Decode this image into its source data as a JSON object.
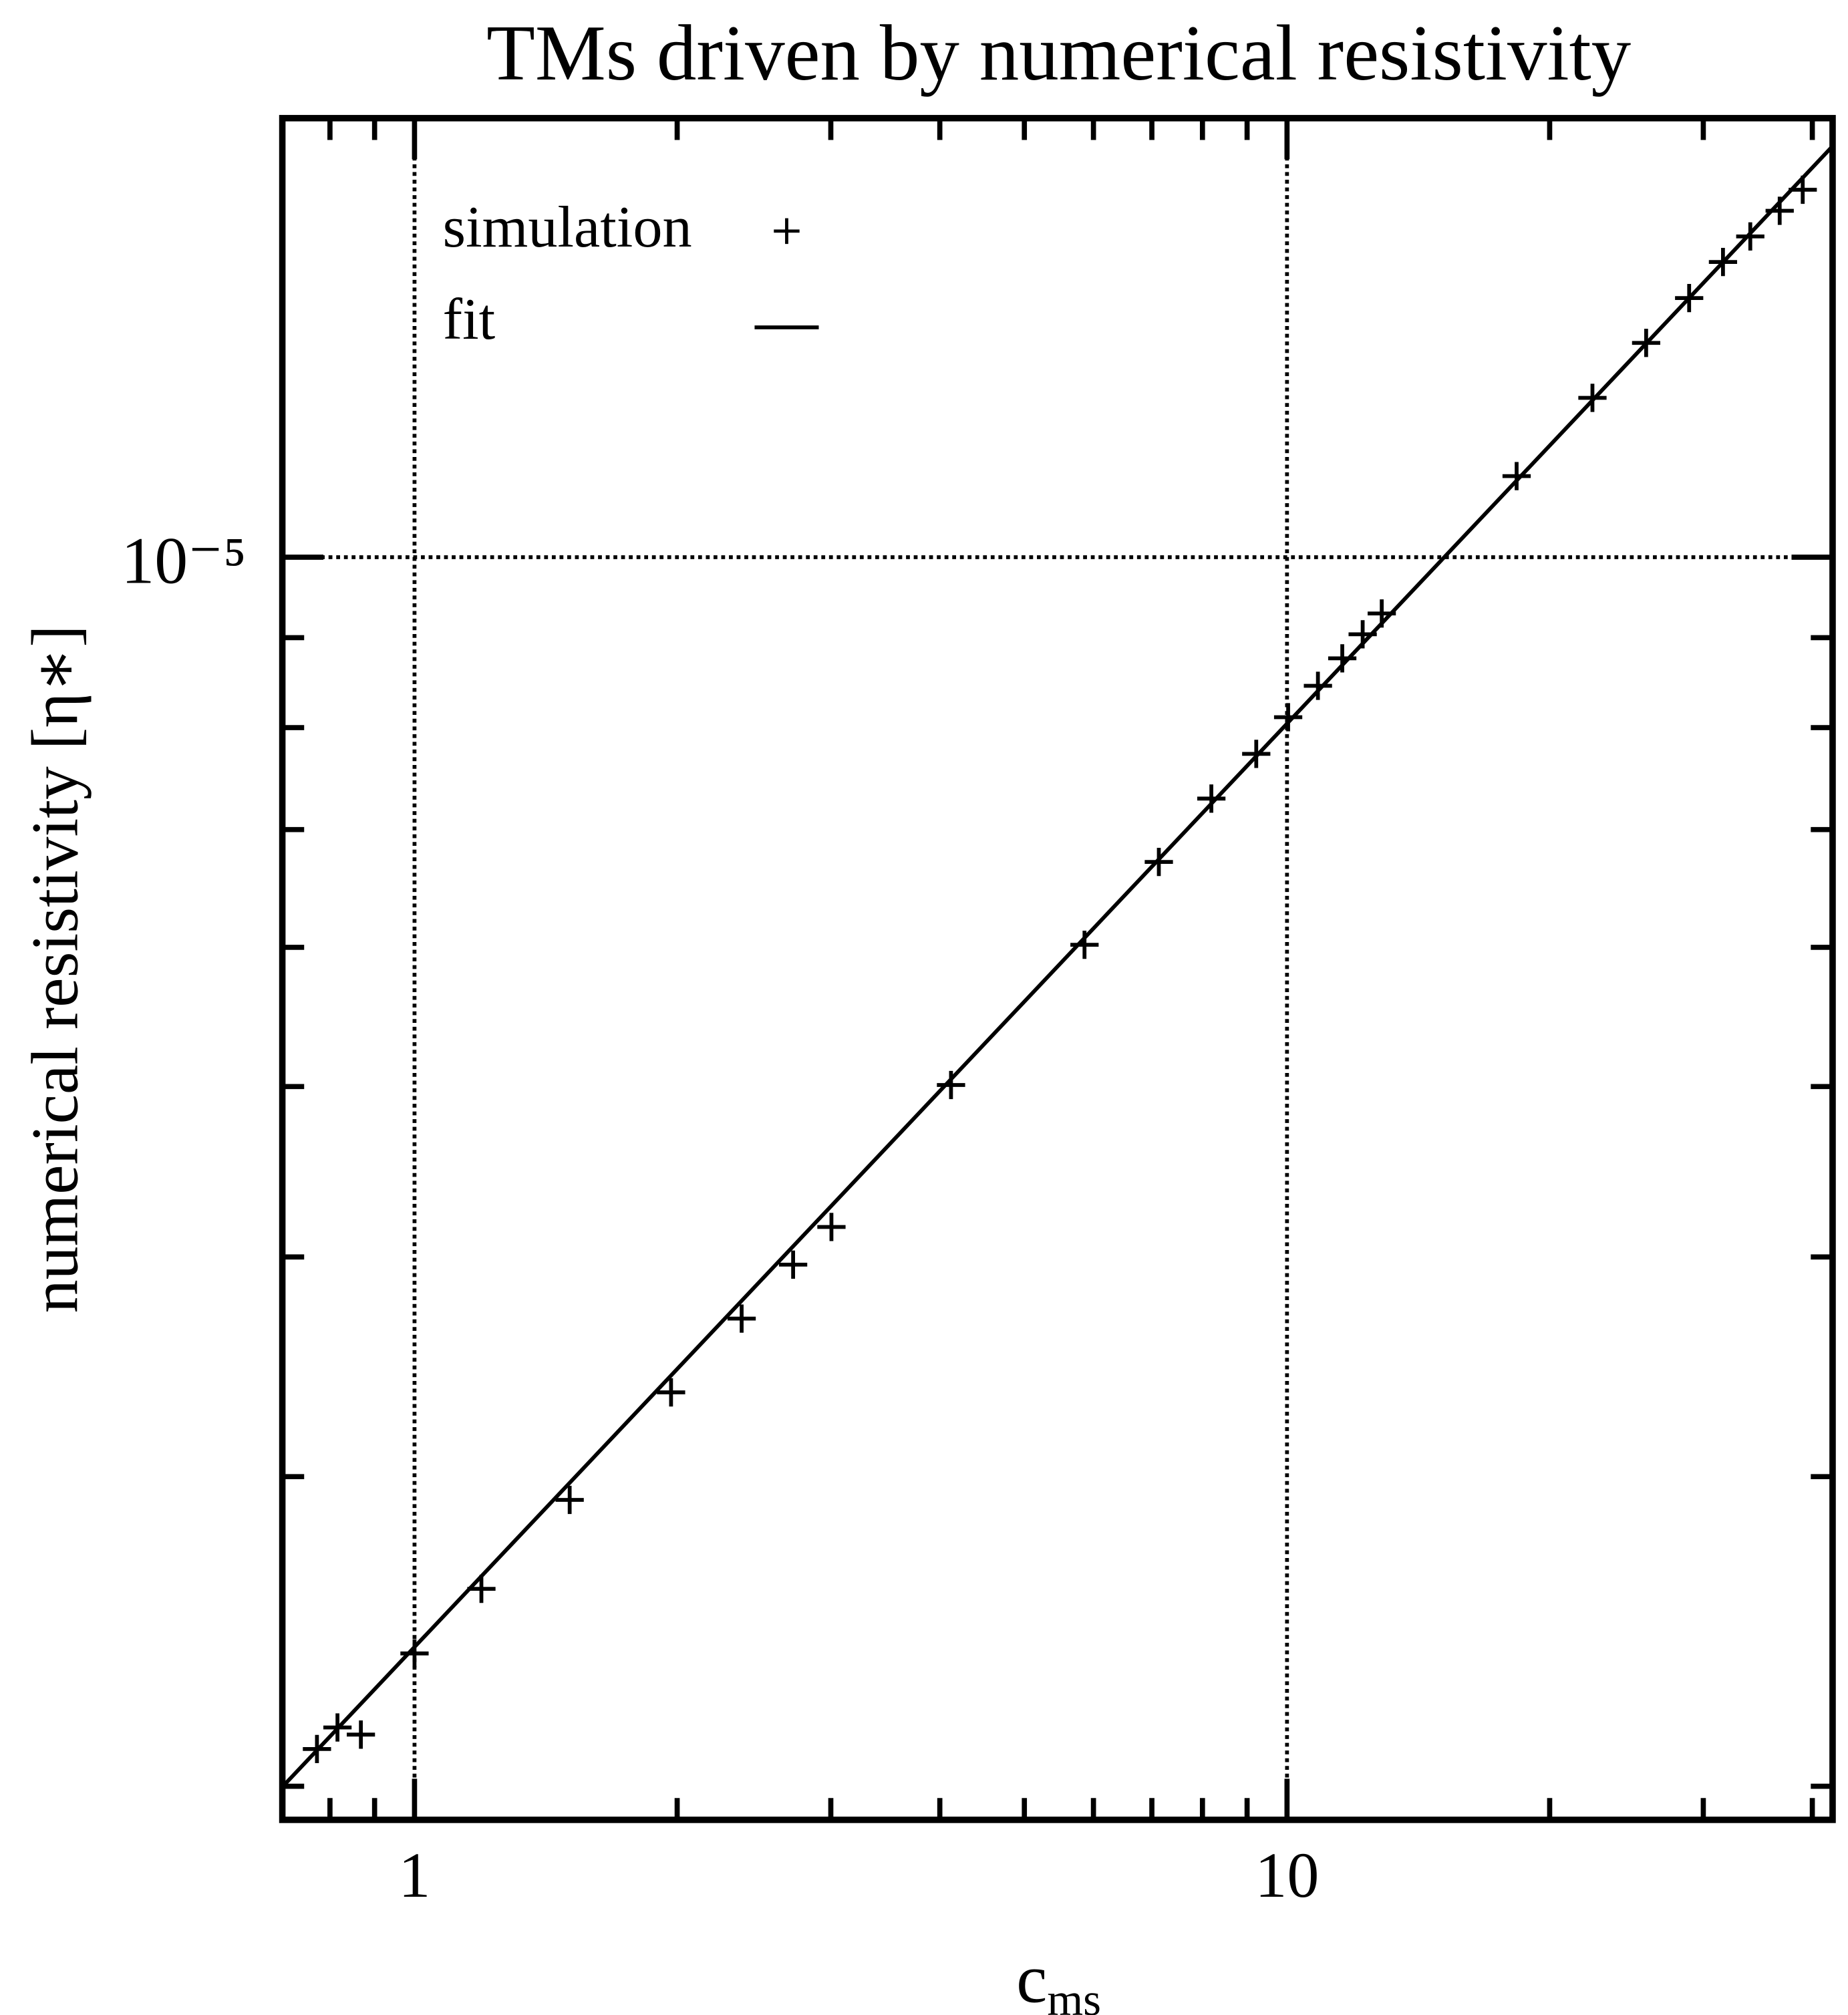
{
  "chart_data": {
    "type": "scatter",
    "title": "TMs driven by numerical resistivity",
    "x_label": "c",
    "x_label_sub": "ms",
    "y_label": "numerical resistivity  [η∗]",
    "log_x": true,
    "log_y": true,
    "grid": true,
    "legend": "upper left",
    "xlim": [
      0.7055,
      42.2
    ],
    "ylim": [
      1.914e-06,
      1.777e-05
    ],
    "xticks": [
      1,
      10
    ],
    "xminorticks": [
      0.8,
      0.9,
      2,
      3,
      4,
      5,
      6,
      7,
      8,
      9,
      20,
      30,
      40
    ],
    "yticks": [
      {
        "value": 1e-05,
        "label": "10⁻⁵"
      }
    ],
    "yminorticks": [
      2e-06,
      3e-06,
      4e-06,
      5e-06,
      6e-06,
      7e-06,
      8e-06,
      9e-06
    ],
    "series": [
      {
        "name": "simulation",
        "color": "#000000",
        "marker": "+",
        "x": [
          0.773,
          0.816,
          0.868,
          1.0,
          1.193,
          1.506,
          1.968,
          2.371,
          2.716,
          3.005,
          4.12,
          5.86,
          7.13,
          8.19,
          9.22,
          10.03,
          10.85,
          11.57,
          12.21,
          12.84,
          18.33,
          22.39,
          25.8,
          28.9,
          31.6,
          33.96,
          36.7,
          39.0
        ],
        "values": [
          2.1e-06,
          2.16e-06,
          2.14e-06,
          2.38e-06,
          2.59e-06,
          2.91e-06,
          3.35e-06,
          3.69e-06,
          3.96e-06,
          4.16e-06,
          5.01e-06,
          6.02e-06,
          6.71e-06,
          7.29e-06,
          7.73e-06,
          8.11e-06,
          8.45e-06,
          8.76e-06,
          9.04e-06,
          9.29e-06,
          1.112e-05,
          1.232e-05,
          1.324e-05,
          1.404e-05,
          1.472e-05,
          1.522e-05,
          1.574e-05,
          1.618e-05
        ]
      },
      {
        "name": "fit",
        "color": "#000000",
        "marker": "line",
        "x": [
          0.71,
          42.2
        ],
        "values": [
          2.005e-06,
          1.713e-05
        ]
      }
    ]
  }
}
